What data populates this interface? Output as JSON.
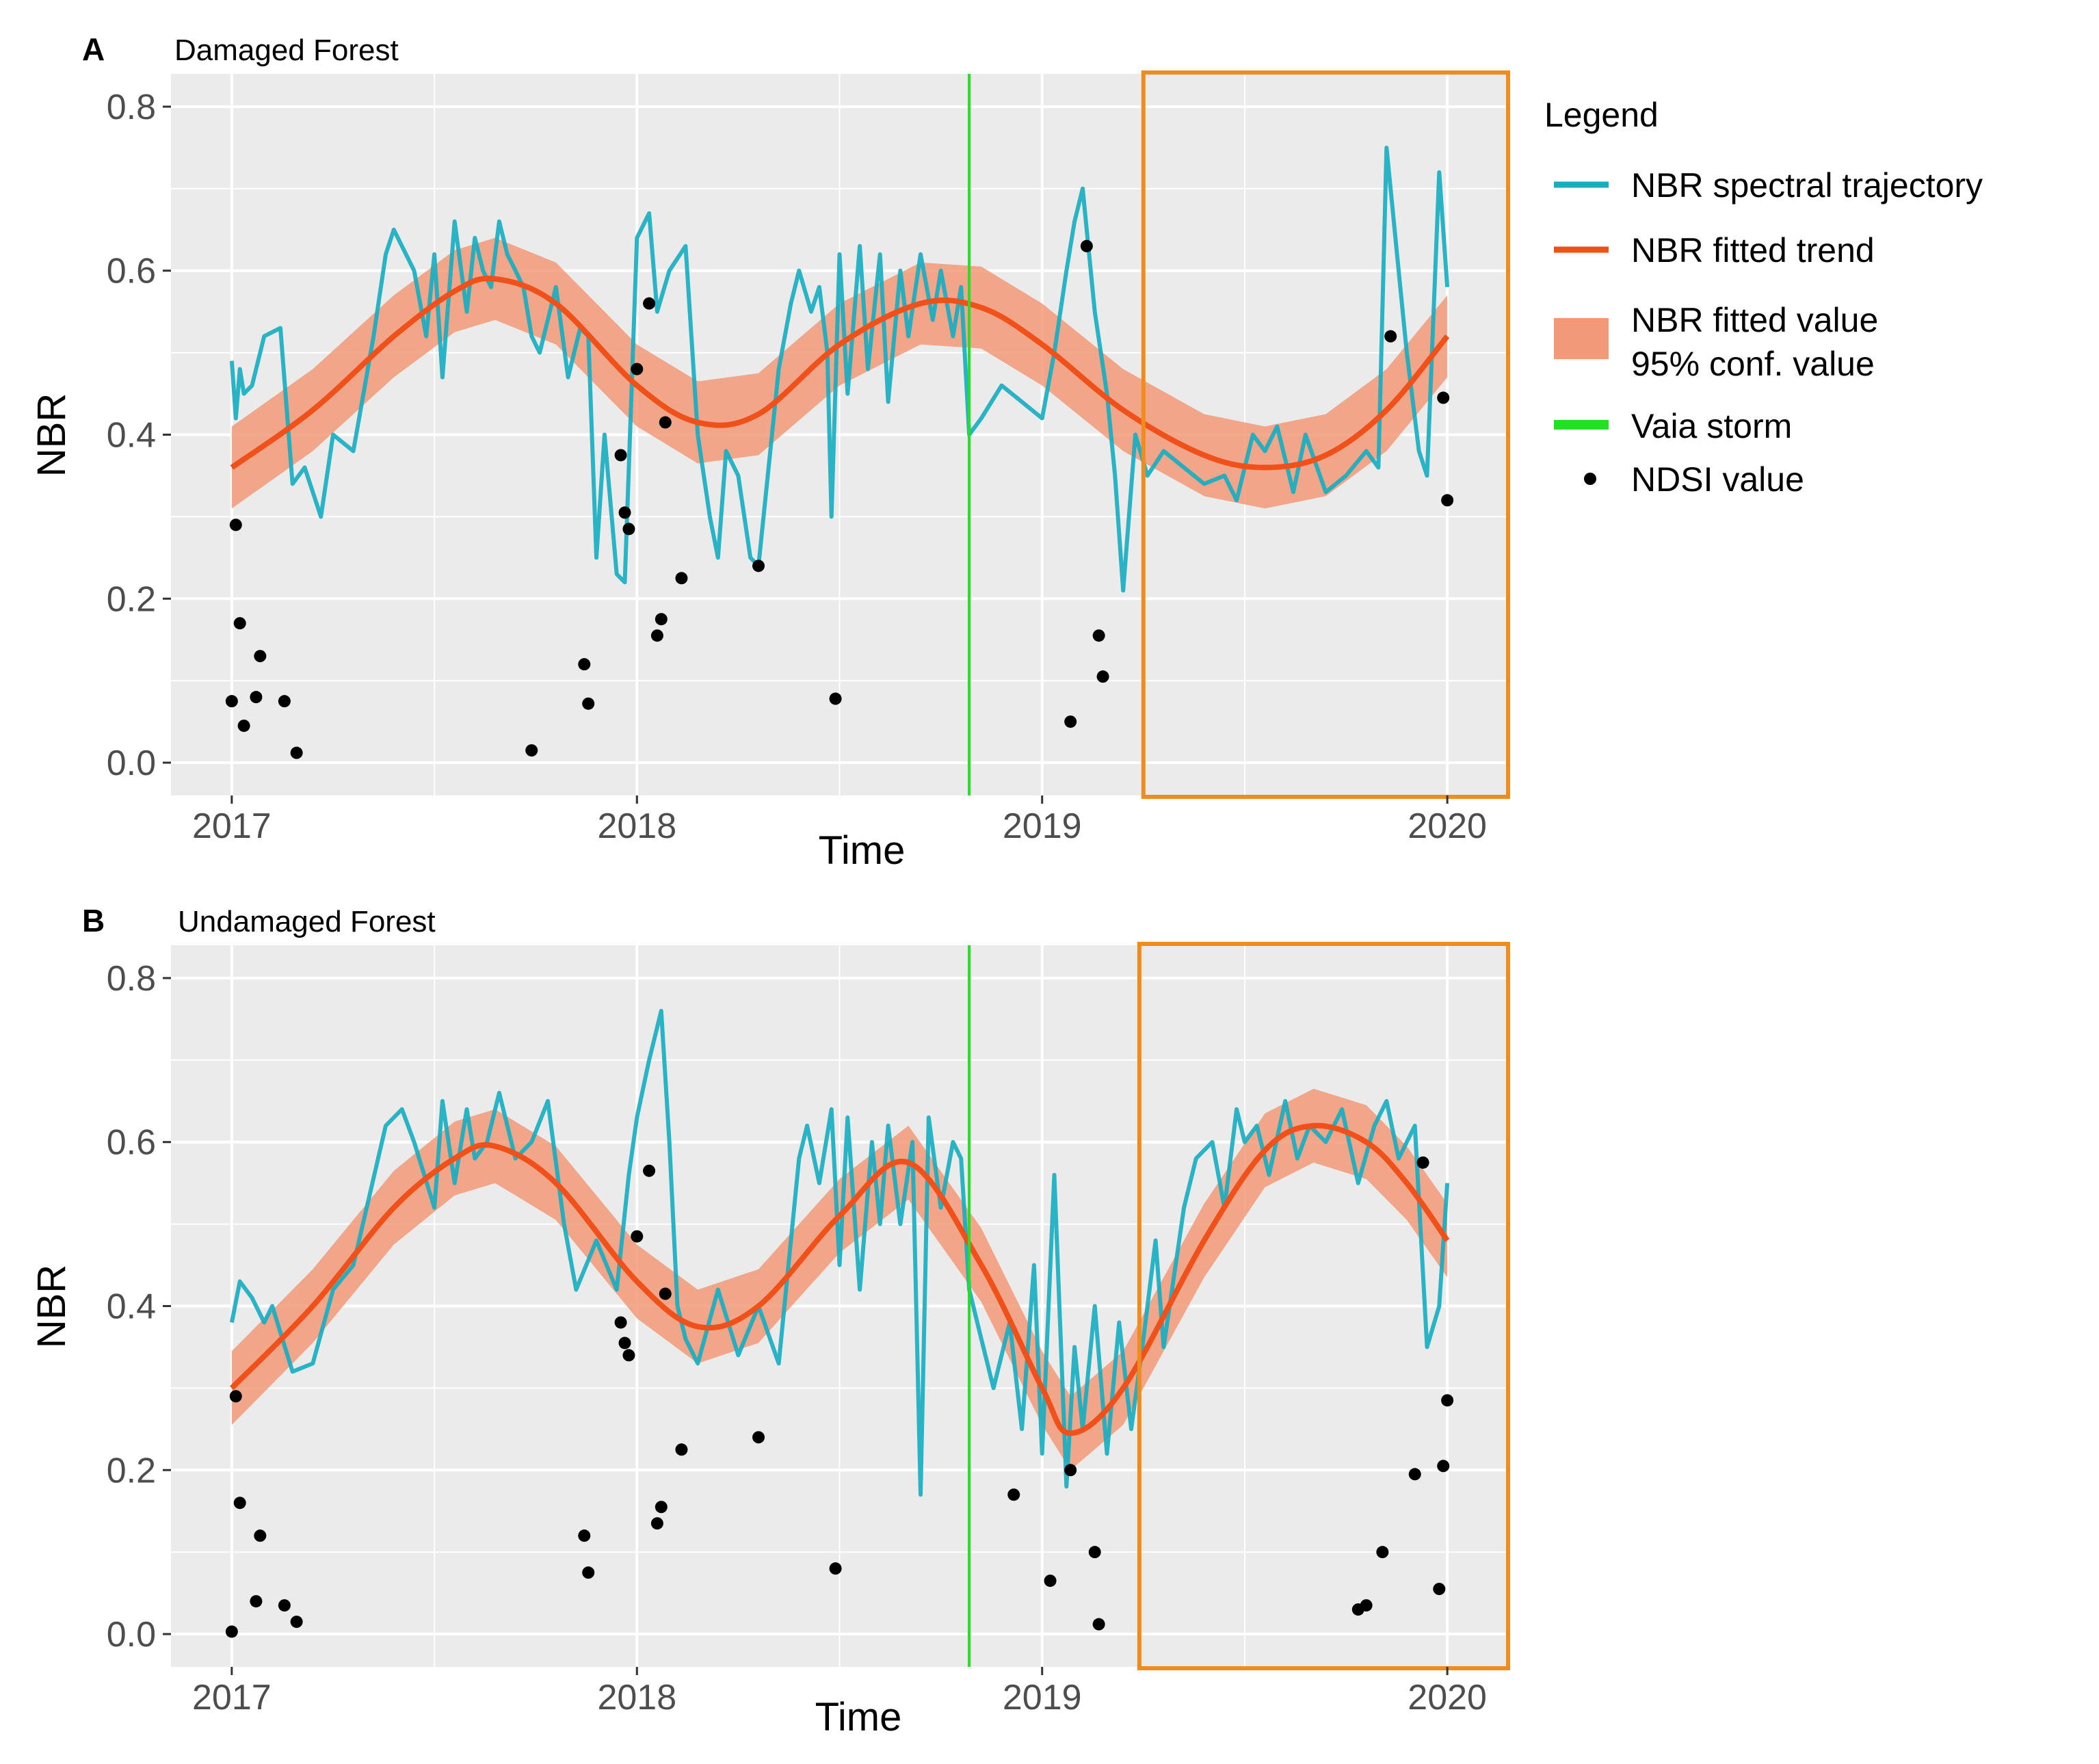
{
  "colors": {
    "panel_bg": "#ebebeb",
    "grid": "#ffffff",
    "trajectory": "#18aec0",
    "trend": "#f0501a",
    "band": "#f29a78",
    "storm": "#22e022",
    "highlight_box": "#f08c1e",
    "ndsi": "#000000"
  },
  "legend": {
    "title": "Legend",
    "items": [
      {
        "key": "trajectory",
        "label_lines": [
          "NBR spectral trajectory"
        ]
      },
      {
        "key": "trend",
        "label_lines": [
          "NBR fitted trend"
        ]
      },
      {
        "key": "band",
        "label_lines": [
          "NBR fitted value",
          "95% conf. value"
        ]
      },
      {
        "key": "storm",
        "label_lines": [
          "Vaia storm"
        ]
      },
      {
        "key": "ndsi",
        "label_lines": [
          "NDSI value"
        ]
      }
    ]
  },
  "chart_data": [
    {
      "type": "line",
      "panel_letter": "A",
      "subtitle": "Damaged Forest",
      "xlabel": "Time",
      "ylabel": "NBR",
      "xlim": [
        2016.85,
        2020.15
      ],
      "ylim": [
        -0.04,
        0.84
      ],
      "xticks": [
        2017,
        2018,
        2019,
        2020
      ],
      "xtick_labels": [
        "2017",
        "2018",
        "2019",
        "2020"
      ],
      "yticks": [
        0.0,
        0.2,
        0.4,
        0.6,
        0.8
      ],
      "ytick_labels": [
        "0.0",
        "0.2",
        "0.4",
        "0.6",
        "0.8"
      ],
      "storm_x": 2018.82,
      "highlight_x": [
        2019.25,
        2020.15
      ],
      "trend": {
        "name": "NBR fitted trend",
        "x": [
          2017.0,
          2017.2,
          2017.4,
          2017.55,
          2017.65,
          2017.8,
          2018.0,
          2018.15,
          2018.3,
          2018.5,
          2018.7,
          2018.85,
          2019.0,
          2019.2,
          2019.4,
          2019.55,
          2019.7,
          2019.85,
          2020.0
        ],
        "y": [
          0.36,
          0.43,
          0.52,
          0.575,
          0.59,
          0.56,
          0.46,
          0.415,
          0.425,
          0.51,
          0.56,
          0.555,
          0.51,
          0.43,
          0.375,
          0.36,
          0.375,
          0.43,
          0.52
        ]
      },
      "band_half_width": 0.05,
      "trajectory": {
        "name": "NBR spectral trajectory",
        "x": [
          2017.0,
          2017.01,
          2017.02,
          2017.03,
          2017.05,
          2017.08,
          2017.12,
          2017.15,
          2017.18,
          2017.22,
          2017.25,
          2017.3,
          2017.35,
          2017.38,
          2017.4,
          2017.45,
          2017.48,
          2017.5,
          2017.52,
          2017.55,
          2017.58,
          2017.6,
          2017.62,
          2017.64,
          2017.66,
          2017.68,
          2017.7,
          2017.72,
          2017.74,
          2017.76,
          2017.8,
          2017.83,
          2017.86,
          2017.88,
          2017.9,
          2017.92,
          2017.95,
          2017.97,
          2018.0,
          2018.03,
          2018.05,
          2018.08,
          2018.12,
          2018.15,
          2018.18,
          2018.2,
          2018.22,
          2018.25,
          2018.28,
          2018.3,
          2018.35,
          2018.38,
          2018.4,
          2018.43,
          2018.45,
          2018.47,
          2018.48,
          2018.5,
          2018.52,
          2018.55,
          2018.57,
          2018.6,
          2018.62,
          2018.65,
          2018.67,
          2018.7,
          2018.73,
          2018.75,
          2018.78,
          2018.8,
          2018.82,
          2018.85,
          2018.9,
          2018.95,
          2019.0,
          2019.03,
          2019.06,
          2019.08,
          2019.1,
          2019.13,
          2019.16,
          2019.18,
          2019.2,
          2019.23,
          2019.26,
          2019.3,
          2019.35,
          2019.4,
          2019.45,
          2019.48,
          2019.52,
          2019.55,
          2019.58,
          2019.62,
          2019.65,
          2019.7,
          2019.75,
          2019.8,
          2019.83,
          2019.85,
          2019.88,
          2019.9,
          2019.93,
          2019.95,
          2019.98,
          2020.0
        ],
        "y": [
          0.49,
          0.42,
          0.48,
          0.45,
          0.46,
          0.52,
          0.53,
          0.34,
          0.36,
          0.3,
          0.4,
          0.38,
          0.52,
          0.62,
          0.65,
          0.6,
          0.52,
          0.62,
          0.47,
          0.66,
          0.55,
          0.64,
          0.6,
          0.58,
          0.66,
          0.62,
          0.6,
          0.58,
          0.52,
          0.5,
          0.58,
          0.47,
          0.53,
          0.52,
          0.25,
          0.4,
          0.23,
          0.22,
          0.64,
          0.67,
          0.55,
          0.6,
          0.63,
          0.4,
          0.3,
          0.25,
          0.38,
          0.35,
          0.25,
          0.24,
          0.48,
          0.56,
          0.6,
          0.55,
          0.58,
          0.5,
          0.3,
          0.62,
          0.45,
          0.63,
          0.48,
          0.62,
          0.44,
          0.6,
          0.52,
          0.62,
          0.54,
          0.6,
          0.52,
          0.58,
          0.4,
          0.42,
          0.46,
          0.44,
          0.42,
          0.5,
          0.6,
          0.66,
          0.7,
          0.55,
          0.45,
          0.35,
          0.21,
          0.4,
          0.35,
          0.38,
          0.36,
          0.34,
          0.35,
          0.32,
          0.4,
          0.38,
          0.41,
          0.33,
          0.4,
          0.33,
          0.35,
          0.38,
          0.36,
          0.75,
          0.6,
          0.5,
          0.38,
          0.35,
          0.72,
          0.58
        ]
      },
      "ndsi": {
        "name": "NDSI value",
        "x": [
          2017.0,
          2017.01,
          2017.02,
          2017.03,
          2017.06,
          2017.07,
          2017.13,
          2017.16,
          2017.74,
          2017.87,
          2017.88,
          2017.96,
          2017.97,
          2017.98,
          2018.0,
          2018.03,
          2018.05,
          2018.06,
          2018.07,
          2018.11,
          2018.3,
          2018.49,
          2019.07,
          2019.11,
          2019.14,
          2019.15,
          2019.86,
          2019.99,
          2020.0
        ],
        "y": [
          0.075,
          0.29,
          0.17,
          0.045,
          0.08,
          0.13,
          0.075,
          0.012,
          0.015,
          0.12,
          0.072,
          0.375,
          0.305,
          0.285,
          0.48,
          0.56,
          0.155,
          0.175,
          0.415,
          0.225,
          0.24,
          0.078,
          0.05,
          0.63,
          0.155,
          0.105,
          0.52,
          0.445,
          0.32
        ]
      }
    },
    {
      "type": "line",
      "panel_letter": "B",
      "subtitle": "Undamaged Forest",
      "xlabel": "Time",
      "ylabel": "NBR",
      "xlim": [
        2016.85,
        2020.15
      ],
      "ylim": [
        -0.04,
        0.84
      ],
      "xticks": [
        2017,
        2018,
        2019,
        2020
      ],
      "xtick_labels": [
        "2017",
        "2018",
        "2019",
        "2020"
      ],
      "yticks": [
        0.0,
        0.2,
        0.4,
        0.6,
        0.8
      ],
      "ytick_labels": [
        "0.0",
        "0.2",
        "0.4",
        "0.6",
        "0.8"
      ],
      "storm_x": 2018.82,
      "highlight_x": [
        2019.24,
        2020.15
      ],
      "trend": {
        "name": "NBR fitted trend",
        "x": [
          2017.0,
          2017.2,
          2017.4,
          2017.55,
          2017.65,
          2017.8,
          2018.0,
          2018.15,
          2018.3,
          2018.5,
          2018.67,
          2018.85,
          2019.0,
          2019.07,
          2019.2,
          2019.4,
          2019.55,
          2019.67,
          2019.8,
          2019.9,
          2020.0
        ],
        "y": [
          0.3,
          0.4,
          0.52,
          0.58,
          0.595,
          0.55,
          0.43,
          0.375,
          0.4,
          0.51,
          0.575,
          0.45,
          0.3,
          0.245,
          0.3,
          0.48,
          0.59,
          0.62,
          0.6,
          0.55,
          0.48
        ]
      },
      "band_half_width": 0.045,
      "trajectory": {
        "name": "NBR spectral trajectory",
        "x": [
          2017.0,
          2017.02,
          2017.05,
          2017.08,
          2017.1,
          2017.15,
          2017.2,
          2017.25,
          2017.3,
          2017.38,
          2017.42,
          2017.45,
          2017.5,
          2017.52,
          2017.55,
          2017.58,
          2017.6,
          2017.63,
          2017.66,
          2017.7,
          2017.74,
          2017.78,
          2017.82,
          2017.85,
          2017.9,
          2017.95,
          2017.98,
          2018.0,
          2018.03,
          2018.06,
          2018.08,
          2018.1,
          2018.12,
          2018.15,
          2018.2,
          2018.25,
          2018.3,
          2018.35,
          2018.4,
          2018.42,
          2018.45,
          2018.48,
          2018.5,
          2018.52,
          2018.55,
          2018.58,
          2018.6,
          2018.62,
          2018.65,
          2018.68,
          2018.7,
          2018.72,
          2018.75,
          2018.78,
          2018.8,
          2018.82,
          2018.85,
          2018.88,
          2018.92,
          2018.95,
          2018.98,
          2019.0,
          2019.03,
          2019.06,
          2019.08,
          2019.1,
          2019.13,
          2019.16,
          2019.19,
          2019.22,
          2019.25,
          2019.28,
          2019.3,
          2019.35,
          2019.38,
          2019.42,
          2019.45,
          2019.48,
          2019.5,
          2019.53,
          2019.56,
          2019.6,
          2019.63,
          2019.66,
          2019.7,
          2019.74,
          2019.78,
          2019.82,
          2019.85,
          2019.88,
          2019.92,
          2019.95,
          2019.98,
          2020.0
        ],
        "y": [
          0.38,
          0.43,
          0.41,
          0.38,
          0.4,
          0.32,
          0.33,
          0.42,
          0.45,
          0.62,
          0.64,
          0.6,
          0.52,
          0.65,
          0.55,
          0.64,
          0.58,
          0.6,
          0.66,
          0.58,
          0.6,
          0.65,
          0.5,
          0.42,
          0.48,
          0.42,
          0.56,
          0.63,
          0.7,
          0.76,
          0.6,
          0.4,
          0.36,
          0.33,
          0.42,
          0.34,
          0.4,
          0.33,
          0.58,
          0.62,
          0.55,
          0.64,
          0.45,
          0.63,
          0.42,
          0.6,
          0.5,
          0.62,
          0.5,
          0.6,
          0.17,
          0.63,
          0.52,
          0.6,
          0.58,
          0.42,
          0.36,
          0.3,
          0.38,
          0.25,
          0.45,
          0.22,
          0.56,
          0.18,
          0.35,
          0.25,
          0.4,
          0.22,
          0.38,
          0.25,
          0.36,
          0.48,
          0.35,
          0.52,
          0.58,
          0.6,
          0.52,
          0.64,
          0.6,
          0.62,
          0.56,
          0.65,
          0.58,
          0.62,
          0.6,
          0.64,
          0.55,
          0.62,
          0.65,
          0.58,
          0.62,
          0.35,
          0.4,
          0.55
        ]
      },
      "ndsi": {
        "name": "NDSI value",
        "x": [
          2017.0,
          2017.01,
          2017.02,
          2017.06,
          2017.07,
          2017.13,
          2017.16,
          2017.87,
          2017.88,
          2017.96,
          2017.97,
          2017.98,
          2018.0,
          2018.03,
          2018.05,
          2018.06,
          2018.07,
          2018.11,
          2018.3,
          2018.49,
          2018.93,
          2019.02,
          2019.07,
          2019.13,
          2019.14,
          2019.78,
          2019.8,
          2019.84,
          2019.92,
          2019.94,
          2019.98,
          2019.99,
          2020.0
        ],
        "y": [
          0.003,
          0.29,
          0.16,
          0.04,
          0.12,
          0.035,
          0.015,
          0.12,
          0.075,
          0.38,
          0.355,
          0.34,
          0.485,
          0.565,
          0.135,
          0.155,
          0.415,
          0.225,
          0.24,
          0.08,
          0.17,
          0.065,
          0.2,
          0.1,
          0.012,
          0.03,
          0.035,
          0.1,
          0.195,
          0.575,
          0.055,
          0.205,
          0.285
        ]
      }
    }
  ]
}
